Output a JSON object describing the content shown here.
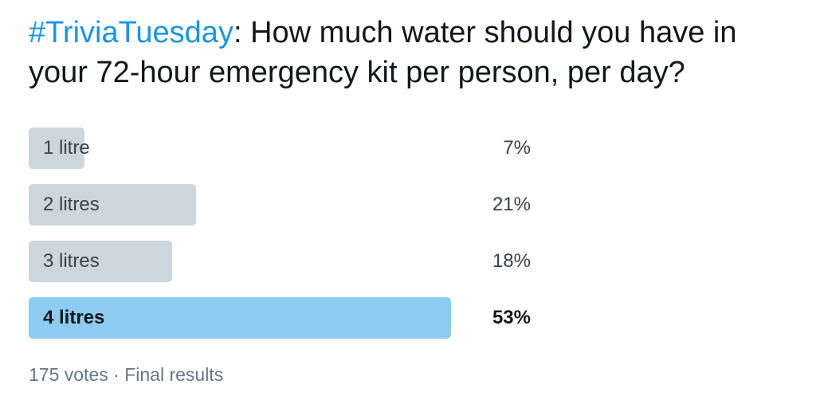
{
  "poll": {
    "hashtag": "#TriviaTuesday",
    "question_text": ": How much water should you have in your 72-hour emergency kit per person, per day?",
    "options": [
      {
        "label": "1 litre",
        "percent_label": "7%",
        "percent": 7,
        "winner": false
      },
      {
        "label": "2 litres",
        "percent_label": "21%",
        "percent": 21,
        "winner": false
      },
      {
        "label": "3 litres",
        "percent_label": "18%",
        "percent": 18,
        "winner": false
      },
      {
        "label": "4 litres",
        "percent_label": "53%",
        "percent": 53,
        "winner": true
      }
    ],
    "votes": "175 votes",
    "separator": "·",
    "status": "Final results"
  },
  "colors": {
    "hashtag": "#1b95e0",
    "bar": "#ccd6dd",
    "winner_bar": "#8ecbf0",
    "meta_text": "#657786"
  }
}
